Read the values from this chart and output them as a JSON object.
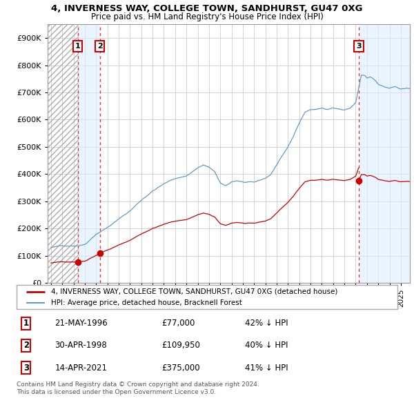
{
  "title": "4, INVERNESS WAY, COLLEGE TOWN, SANDHURST, GU47 0XG",
  "subtitle": "Price paid vs. HM Land Registry's House Price Index (HPI)",
  "hpi_color": "#6699cc",
  "price_color": "#cc0000",
  "grid_color": "#cccccc",
  "hatch_color": "#bbbbcc",
  "shade_color": "#ddeeff",
  "transactions": [
    {
      "num": 1,
      "date_str": "21-MAY-1996",
      "year": 1996.38,
      "price": 77000
    },
    {
      "num": 2,
      "date_str": "30-APR-1998",
      "year": 1998.33,
      "price": 109950
    },
    {
      "num": 3,
      "date_str": "14-APR-2021",
      "year": 2021.28,
      "price": 375000
    }
  ],
  "footer_line1": "Contains HM Land Registry data © Crown copyright and database right 2024.",
  "footer_line2": "This data is licensed under the Open Government Licence v3.0.",
  "legend_label1": "4, INVERNESS WAY, COLLEGE TOWN, SANDHURST, GU47 0XG (detached house)",
  "legend_label2": "HPI: Average price, detached house, Bracknell Forest",
  "table_rows": [
    {
      "num": 1,
      "date": "21-MAY-1996",
      "price": "£77,000",
      "pct": "42% ↓ HPI"
    },
    {
      "num": 2,
      "date": "30-APR-1998",
      "price": "£109,950",
      "pct": "40% ↓ HPI"
    },
    {
      "num": 3,
      "date": "14-APR-2021",
      "price": "£375,000",
      "pct": "41% ↓ HPI"
    }
  ],
  "ylim": [
    0,
    950000
  ],
  "xlim_start": 1993.7,
  "xlim_end": 2025.8
}
